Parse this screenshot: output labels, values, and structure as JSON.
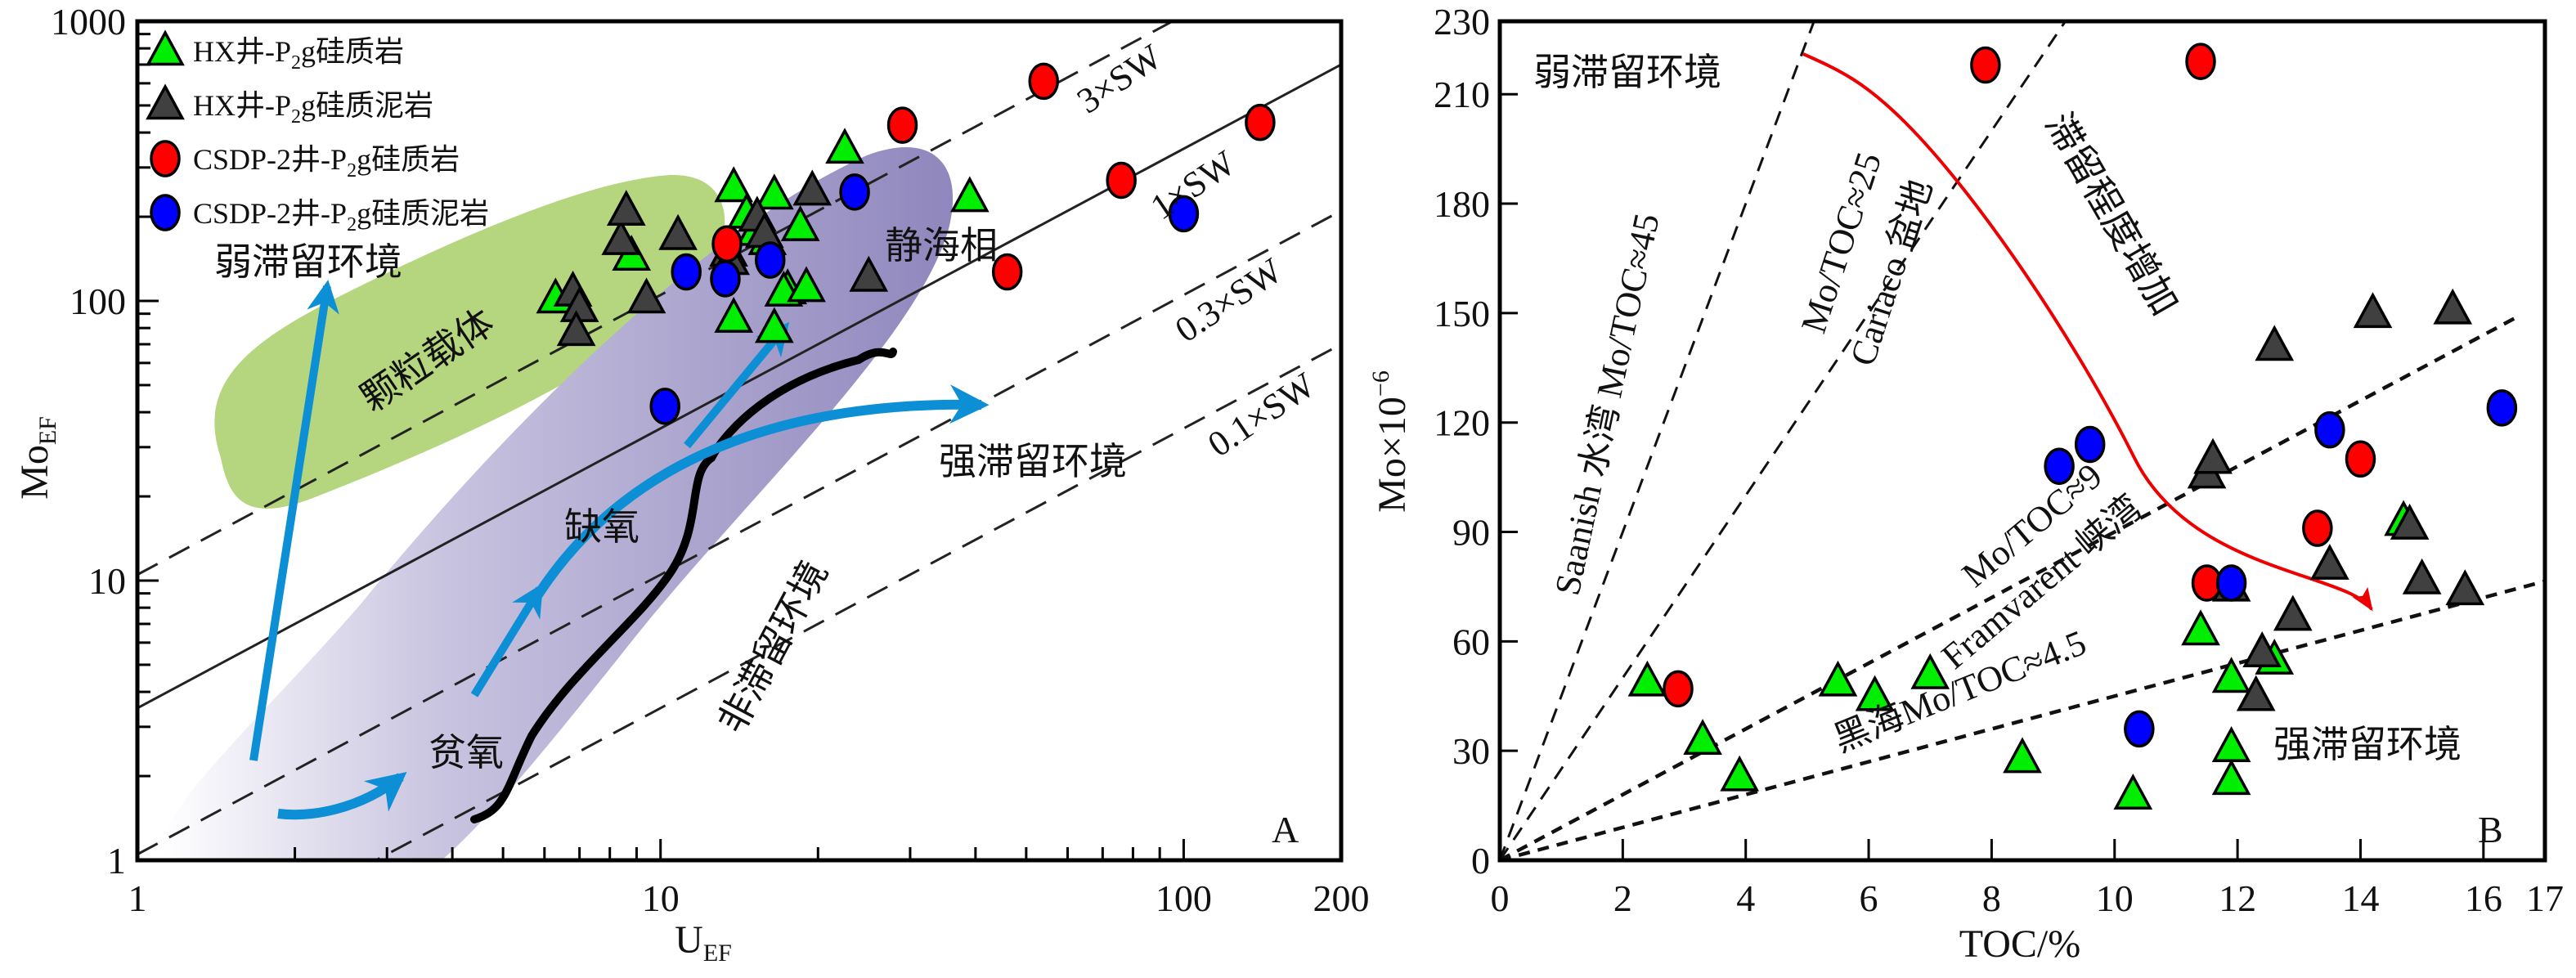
{
  "chart_data": [
    {
      "panel": "A",
      "type": "scatter",
      "xscale": "log",
      "yscale": "log",
      "xlabel": "U",
      "xlabel_sub": "EF",
      "ylabel": "Mo",
      "ylabel_sub": "EF",
      "xlim": [
        1,
        200
      ],
      "ylim": [
        1,
        1000
      ],
      "x_ticks": [
        {
          "v": 1,
          "label": "1"
        },
        {
          "v": 10,
          "label": "10"
        },
        {
          "v": 100,
          "label": "100"
        },
        {
          "v": 200,
          "label": "200"
        }
      ],
      "y_ticks": [
        {
          "v": 1,
          "label": "1"
        },
        {
          "v": 10,
          "label": "10"
        },
        {
          "v": 100,
          "label": "100"
        },
        {
          "v": 1000,
          "label": "1000"
        }
      ],
      "legend": {
        "position": "top-left",
        "entries": [
          {
            "marker": "triangle",
            "color": "#00ee00",
            "pre": "HX井-P",
            "sub": "2",
            "post": "g硅质岩"
          },
          {
            "marker": "triangle",
            "color": "#404040",
            "pre": "HX井-P",
            "sub": "2",
            "post": "g硅质泥岩"
          },
          {
            "marker": "circle",
            "color": "#ff0000",
            "pre": "CSDP-2井-P",
            "sub": "2",
            "post": "g硅质岩"
          },
          {
            "marker": "circle",
            "color": "#0000ff",
            "pre": "CSDP-2井-P",
            "sub": "2",
            "post": "g硅质泥岩"
          }
        ]
      },
      "reference_lines": [
        {
          "label": "3×SW",
          "ratio": 3,
          "style": "dashed"
        },
        {
          "label": "1×SW",
          "ratio": 1,
          "style": "solid"
        },
        {
          "label": "0.3×SW",
          "ratio": 0.3,
          "style": "dashed"
        },
        {
          "label": "0.1×SW",
          "ratio": 0.1,
          "style": "dashed"
        }
      ],
      "regions": [
        {
          "label": "颗粒载体",
          "color": "#b5d57f"
        },
        {
          "label": "静海相",
          "color": "#8f87bd"
        }
      ],
      "annotations": [
        {
          "text": "弱滞留环境"
        },
        {
          "text": "强滞留环境"
        },
        {
          "text": "缺氧"
        },
        {
          "text": "贫氧"
        },
        {
          "text": "非滞留环境"
        },
        {
          "text": "静海相"
        },
        {
          "text": "颗粒载体"
        }
      ],
      "panel_label": "A",
      "series": [
        {
          "name": "HX井-P2g硅质岩",
          "marker": "triangle",
          "color": "#00ee00",
          "points": [
            [
              6.3,
              102
            ],
            [
              8.8,
              145
            ],
            [
              13.8,
              255
            ],
            [
              14.6,
              205
            ],
            [
              15.2,
              178
            ],
            [
              16.5,
              240
            ],
            [
              17.5,
              110
            ],
            [
              17.2,
              108
            ],
            [
              18.5,
              185
            ],
            [
              19.0,
              112
            ],
            [
              13.8,
              87
            ],
            [
              16.5,
              80
            ],
            [
              22.5,
              350
            ],
            [
              39,
              235
            ],
            [
              16,
              165
            ]
          ]
        },
        {
          "name": "HX井-P2g硅质泥岩",
          "marker": "triangle",
          "color": "#404040",
          "points": [
            [
              6.8,
              108
            ],
            [
              7.0,
              95
            ],
            [
              6.9,
              78
            ],
            [
              8.4,
              165
            ],
            [
              8.6,
              210
            ],
            [
              9.4,
              102
            ],
            [
              10.8,
              172
            ],
            [
              13.5,
              150
            ],
            [
              13.6,
              140
            ],
            [
              15.3,
              200
            ],
            [
              19.5,
              248
            ],
            [
              25,
              122
            ],
            [
              15.8,
              175
            ]
          ]
        },
        {
          "name": "CSDP-2井-P2g硅质岩",
          "marker": "circle",
          "color": "#ff0000",
          "points": [
            [
              13.4,
              160
            ],
            [
              29,
              425
            ],
            [
              46,
              127
            ],
            [
              54,
              610
            ],
            [
              76,
              270
            ],
            [
              140,
              435
            ]
          ]
        },
        {
          "name": "CSDP-2井-P2g硅质泥岩",
          "marker": "circle",
          "color": "#0000ff",
          "points": [
            [
              10.2,
              42
            ],
            [
              11.2,
              127
            ],
            [
              13.3,
              120
            ],
            [
              16.2,
              140
            ],
            [
              23.5,
              245
            ],
            [
              100,
              205
            ]
          ]
        }
      ]
    },
    {
      "panel": "B",
      "type": "scatter",
      "xlabel": "TOC/%",
      "ylabel": "Mo×10",
      "ylabel_sup": "−6",
      "xlim": [
        0,
        17
      ],
      "ylim": [
        0,
        230
      ],
      "x_ticks": [
        {
          "v": 0,
          "label": "0"
        },
        {
          "v": 2,
          "label": "2"
        },
        {
          "v": 4,
          "label": "4"
        },
        {
          "v": 6,
          "label": "6"
        },
        {
          "v": 8,
          "label": "8"
        },
        {
          "v": 10,
          "label": "10"
        },
        {
          "v": 12,
          "label": "12"
        },
        {
          "v": 14,
          "label": "14"
        },
        {
          "v": 16,
          "label": "16"
        },
        {
          "v": 17,
          "label": "17"
        }
      ],
      "y_ticks": [
        {
          "v": 0,
          "label": "0"
        },
        {
          "v": 30,
          "label": "30"
        },
        {
          "v": 60,
          "label": "60"
        },
        {
          "v": 90,
          "label": "90"
        },
        {
          "v": 120,
          "label": "120"
        },
        {
          "v": 150,
          "label": "150"
        },
        {
          "v": 180,
          "label": "180"
        },
        {
          "v": 210,
          "label": "210"
        },
        {
          "v": 230,
          "label": "230"
        }
      ],
      "reference_lines": [
        {
          "label": "Saanish 水湾  Mo/TOC≈45",
          "slope": 45
        },
        {
          "label": "Mo/TOC≈25",
          "label2": "Cariaco 盆地",
          "slope": 25
        },
        {
          "label": "Mo/TOC≈9",
          "label2": "Framvarent 峡湾",
          "slope": 9
        },
        {
          "label": "黑海Mo/TOC≈4.5",
          "slope": 4.5
        }
      ],
      "annotations": [
        {
          "text": "弱滞留环境"
        },
        {
          "text": "强滞留环境"
        },
        {
          "text": "滞留程度增加"
        }
      ],
      "arrow_color": "#ee0000",
      "panel_label": "B",
      "series": [
        {
          "name": "HX井-P2g硅质岩",
          "marker": "triangle",
          "color": "#00ee00",
          "points": [
            [
              2.4,
              49
            ],
            [
              3.3,
              33
            ],
            [
              3.9,
              23
            ],
            [
              5.5,
              49
            ],
            [
              6.1,
              45
            ],
            [
              7.0,
              51
            ],
            [
              8.5,
              28
            ],
            [
              10.3,
              18
            ],
            [
              11.4,
              63
            ],
            [
              11.9,
              50
            ],
            [
              11.9,
              31
            ],
            [
              11.9,
              22
            ],
            [
              12.6,
              55
            ],
            [
              14.7,
              93
            ]
          ]
        },
        {
          "name": "HX井-P2g硅质泥岩",
          "marker": "triangle",
          "color": "#404040",
          "points": [
            [
              11.5,
              106
            ],
            [
              11.6,
              110
            ],
            [
              12.3,
              45
            ],
            [
              12.4,
              57
            ],
            [
              12.6,
              141
            ],
            [
              12.9,
              67
            ],
            [
              13.5,
              81
            ],
            [
              14.2,
              150
            ],
            [
              14.8,
              92
            ],
            [
              15.0,
              77
            ],
            [
              15.5,
              151
            ],
            [
              15.7,
              74
            ],
            [
              11.9,
              75
            ]
          ]
        },
        {
          "name": "CSDP-2井-P2g硅质岩",
          "marker": "circle",
          "color": "#ff0000",
          "points": [
            [
              2.9,
              47
            ],
            [
              7.9,
              218
            ],
            [
              11.4,
              219
            ],
            [
              11.5,
              76
            ],
            [
              13.3,
              91
            ],
            [
              14.0,
              110
            ]
          ]
        },
        {
          "name": "CSDP-2井-P2g硅质泥岩",
          "marker": "circle",
          "color": "#0000ff",
          "points": [
            [
              9.1,
              108
            ],
            [
              9.6,
              114
            ],
            [
              10.4,
              36
            ],
            [
              11.9,
              76
            ],
            [
              13.5,
              118
            ],
            [
              16.3,
              124
            ]
          ]
        }
      ]
    }
  ]
}
